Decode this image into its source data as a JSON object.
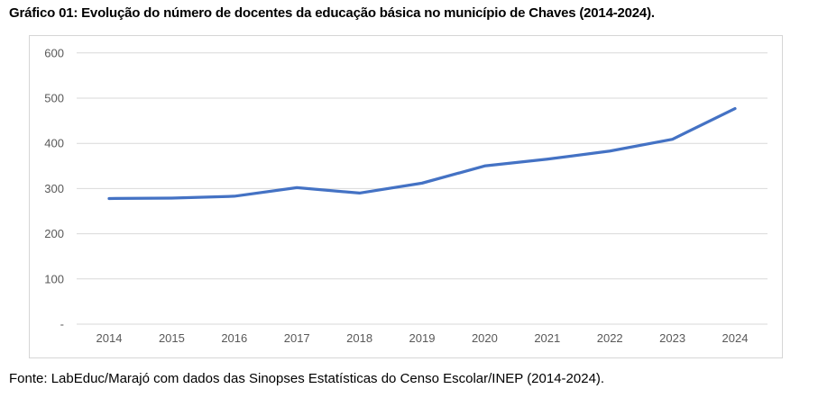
{
  "title": "Gráfico 01: Evolução do número de docentes da educação básica no município de Chaves (2014-2024).",
  "source": "Fonte: LabEduc/Marajó com dados das Sinopses Estatísticas do Censo Escolar/INEP (2014-2024).",
  "chart_data": {
    "type": "line",
    "title": "",
    "xlabel": "",
    "ylabel": "",
    "categories": [
      "2014",
      "2015",
      "2016",
      "2017",
      "2018",
      "2019",
      "2020",
      "2021",
      "2022",
      "2023",
      "2024"
    ],
    "values": [
      278,
      279,
      283,
      302,
      290,
      312,
      350,
      365,
      383,
      409,
      477
    ],
    "y_ticks": [
      600,
      500,
      400,
      300,
      200,
      100,
      0
    ],
    "y_tick_labels": [
      "600",
      "500",
      "400",
      "300",
      "200",
      "100",
      "-"
    ],
    "ylim": [
      0,
      620
    ],
    "grid": true,
    "legend": false,
    "colors": {
      "line": "#4472C4",
      "gridline": "#d9d9d9",
      "tick_label": "#595959",
      "border": "#d6d6d6",
      "background": "#ffffff"
    }
  }
}
